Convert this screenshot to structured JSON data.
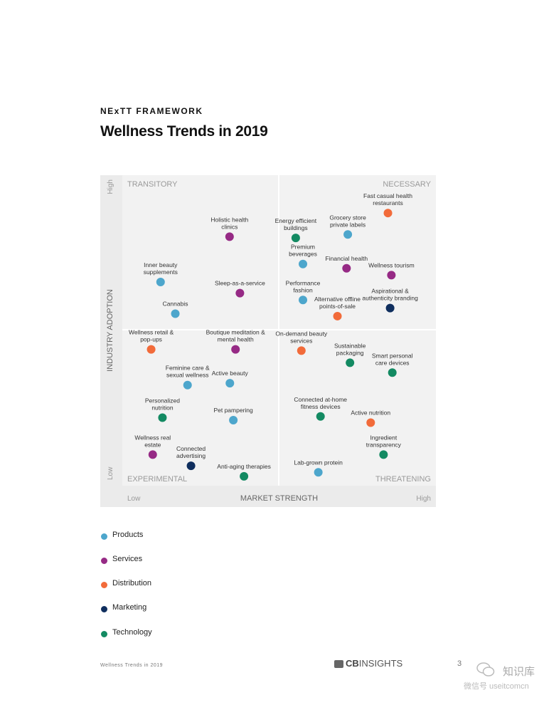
{
  "header": {
    "eyebrow": "NExTT FRAMEWORK",
    "title": "Wellness Trends in 2019"
  },
  "colors": {
    "Products": "#4da6cc",
    "Services": "#962a85",
    "Distribution": "#f26b3a",
    "Marketing": "#0f2e5e",
    "Technology": "#138a62"
  },
  "chart_data": {
    "type": "scatter",
    "title": "Wellness Trends in 2019",
    "xlabel": "MARKET STRENGTH",
    "ylabel": "INDUSTRY ADOPTION",
    "xlim": [
      0,
      100
    ],
    "ylim": [
      0,
      100
    ],
    "x_ends": {
      "low": "Low",
      "high": "High"
    },
    "y_ends": {
      "low": "Low",
      "high": "High"
    },
    "quadrants": {
      "top_left": "TRANSITORY",
      "top_right": "NECESSARY",
      "bottom_left": "EXPERIMENTAL",
      "bottom_right": "THREATENING"
    },
    "legend": [
      {
        "name": "Products",
        "color": "#4da6cc"
      },
      {
        "name": "Services",
        "color": "#962a85"
      },
      {
        "name": "Distribution",
        "color": "#f26b3a"
      },
      {
        "name": "Marketing",
        "color": "#0f2e5e"
      },
      {
        "name": "Technology",
        "color": "#138a62"
      }
    ],
    "points": [
      {
        "label": "Holistic health\nclinics",
        "category": "Services",
        "x": 34.2,
        "y": 80.2,
        "label_pos": "above"
      },
      {
        "label": "Inner beauty\nsupplements",
        "category": "Products",
        "x": 12.2,
        "y": 65.6,
        "label_pos": "above"
      },
      {
        "label": "Sleep-as-a-service",
        "category": "Services",
        "x": 37.5,
        "y": 62.0,
        "label_pos": "above"
      },
      {
        "label": "Cannabis",
        "category": "Products",
        "x": 16.9,
        "y": 55.4,
        "label_pos": "above"
      },
      {
        "label": "Energy efficient\nbuildings",
        "category": "Technology",
        "x": 55.3,
        "y": 79.8,
        "label_pos": "above"
      },
      {
        "label": "Grocery store\nprivate labels",
        "category": "Products",
        "x": 71.9,
        "y": 80.9,
        "label_pos": "above"
      },
      {
        "label": "Fast casual health\nrestaurants",
        "category": "Distribution",
        "x": 84.7,
        "y": 87.8,
        "label_pos": "above"
      },
      {
        "label": "Premium\nbeverages",
        "category": "Products",
        "x": 57.6,
        "y": 71.4,
        "label_pos": "above"
      },
      {
        "label": "Financial health",
        "category": "Services",
        "x": 71.5,
        "y": 70.0,
        "label_pos": "above"
      },
      {
        "label": "Wellness tourism",
        "category": "Services",
        "x": 85.8,
        "y": 67.8,
        "label_pos": "above"
      },
      {
        "label": "Performance\nfashion",
        "category": "Products",
        "x": 57.6,
        "y": 59.8,
        "label_pos": "above"
      },
      {
        "label": "Alternative offline\npoints-of-sale",
        "category": "Distribution",
        "x": 68.6,
        "y": 54.6,
        "label_pos": "above"
      },
      {
        "label": "Aspirational &\nauthenticity branding",
        "category": "Marketing",
        "x": 85.4,
        "y": 57.2,
        "label_pos": "above"
      },
      {
        "label": "Wellness retail &\npop-ups",
        "category": "Distribution",
        "x": 9.2,
        "y": 43.9,
        "label_pos": "above"
      },
      {
        "label": "Boutique meditation &\nmental health",
        "category": "Services",
        "x": 36.1,
        "y": 43.9,
        "label_pos": "above"
      },
      {
        "label": "Feminine care &\nsexual wellness",
        "category": "Products",
        "x": 20.8,
        "y": 32.4,
        "label_pos": "above"
      },
      {
        "label": "Active beauty",
        "category": "Products",
        "x": 34.3,
        "y": 33.0,
        "label_pos": "above"
      },
      {
        "label": "Personalized\nnutrition",
        "category": "Technology",
        "x": 12.8,
        "y": 21.9,
        "label_pos": "above"
      },
      {
        "label": "Pet pampering",
        "category": "Products",
        "x": 35.4,
        "y": 21.1,
        "label_pos": "above"
      },
      {
        "label": "Wellness real\nestate",
        "category": "Services",
        "x": 9.7,
        "y": 10.0,
        "label_pos": "above"
      },
      {
        "label": "Connected\nadvertising",
        "category": "Marketing",
        "x": 21.9,
        "y": 6.4,
        "label_pos": "above"
      },
      {
        "label": "Anti-aging therapies",
        "category": "Technology",
        "x": 38.8,
        "y": 3.0,
        "label_pos": "above"
      },
      {
        "label": "On-demand beauty\nservices",
        "category": "Distribution",
        "x": 57.1,
        "y": 43.5,
        "label_pos": "above"
      },
      {
        "label": "Sustainable\npackaging",
        "category": "Technology",
        "x": 72.6,
        "y": 39.6,
        "label_pos": "above"
      },
      {
        "label": "Smart personal\ncare devices",
        "category": "Technology",
        "x": 86.1,
        "y": 36.4,
        "label_pos": "above"
      },
      {
        "label": "Connected at-home\nfitness devices",
        "category": "Technology",
        "x": 63.2,
        "y": 22.3,
        "label_pos": "above"
      },
      {
        "label": "Active nutrition",
        "category": "Distribution",
        "x": 79.2,
        "y": 20.3,
        "label_pos": "above"
      },
      {
        "label": "Ingredient\ntransparency",
        "category": "Technology",
        "x": 83.3,
        "y": 10.0,
        "label_pos": "above"
      },
      {
        "label": "Lab-grown protein",
        "category": "Products",
        "x": 62.5,
        "y": 4.3,
        "label_pos": "above"
      }
    ]
  },
  "legend_items": [
    {
      "label": "Products",
      "color": "#4da6cc"
    },
    {
      "label": "Services",
      "color": "#962a85"
    },
    {
      "label": "Distribution",
      "color": "#f26b3a"
    },
    {
      "label": "Marketing",
      "color": "#0f2e5e"
    },
    {
      "label": "Technology",
      "color": "#138a62"
    }
  ],
  "footer": {
    "left": "Wellness Trends in 2019",
    "brand_bold": "CB",
    "brand_rest": "INSIGHTS",
    "page": "3",
    "wm_name": "知识库",
    "wm_sub": "微信号 useitcomcn"
  }
}
